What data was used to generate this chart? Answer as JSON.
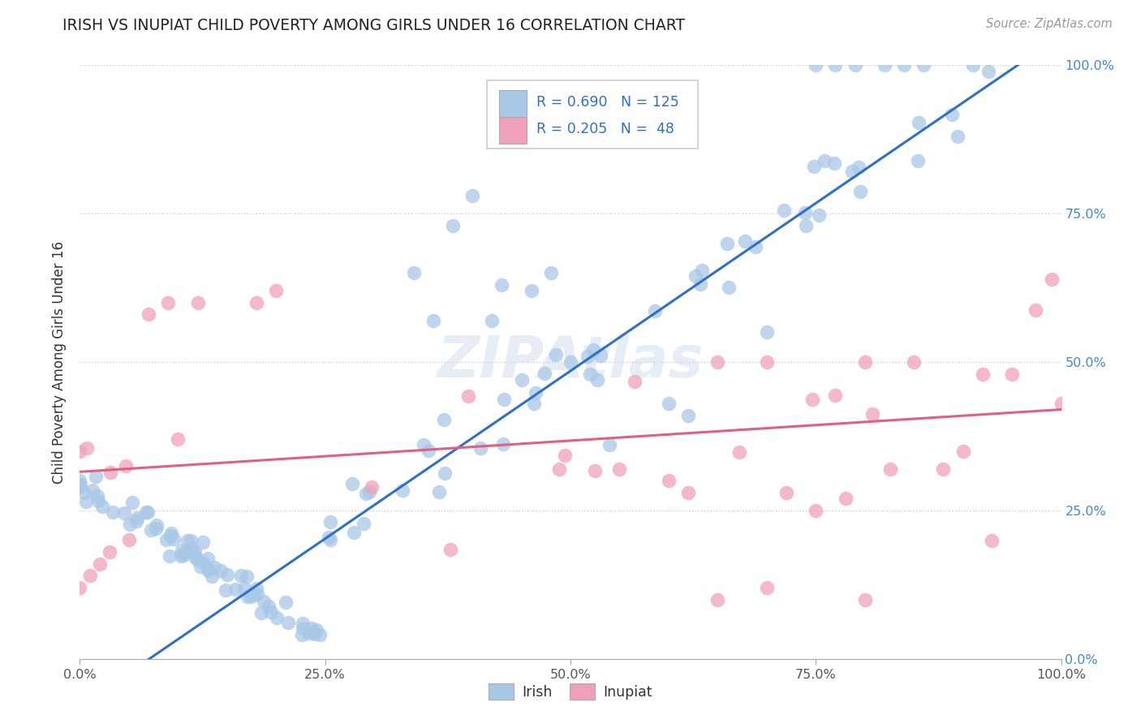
{
  "title": "IRISH VS INUPIAT CHILD POVERTY AMONG GIRLS UNDER 16 CORRELATION CHART",
  "source": "Source: ZipAtlas.com",
  "ylabel": "Child Poverty Among Girls Under 16",
  "watermark": "ZIPAtlas",
  "irish_R": 0.69,
  "irish_N": 125,
  "inupiat_R": 0.205,
  "inupiat_N": 48,
  "irish_color": "#a8c8e8",
  "inupiat_color": "#f0a0b8",
  "irish_line_color": "#3070c0",
  "inupiat_line_color": "#e06080",
  "background_color": "#ffffff",
  "title_color": "#222222",
  "ylabel_color": "#333333",
  "legend_text_color": "#3070c0",
  "irish_line": [
    0.0,
    -0.08,
    1.0,
    1.05
  ],
  "inupiat_line": [
    0.0,
    0.315,
    1.0,
    0.42
  ],
  "x_tick_labels": [
    "0.0%",
    "25.0%",
    "50.0%",
    "75.0%",
    "100.0%"
  ],
  "y_tick_labels": [
    "0.0%",
    "25.0%",
    "50.0%",
    "75.0%",
    "100.0%"
  ]
}
